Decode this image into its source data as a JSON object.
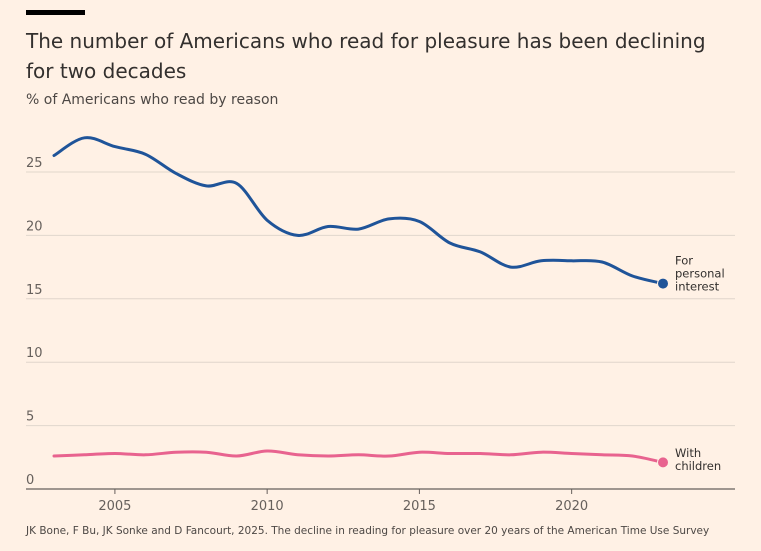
{
  "title": "The number of Americans who read for pleasure has been declining for two decades",
  "subtitle": "% of Americans who read by reason",
  "source": "JK Bone, F Bu, JK Sonke and D Fancourt, 2025. The decline in reading for pleasure over 20 years of the American Time Use Survey",
  "chart_data": {
    "type": "line",
    "title": "The number of Americans who read for pleasure has been declining for two decades",
    "ylabel": "% of Americans who read by reason",
    "xlabel": "",
    "xlim": [
      2003,
      2023
    ],
    "ylim": [
      0,
      27.5
    ],
    "x_ticks": [
      2005,
      2010,
      2015,
      2020
    ],
    "y_ticks": [
      0,
      5,
      10,
      15,
      20,
      25
    ],
    "grid": "horizontal",
    "x": [
      2003,
      2004,
      2005,
      2006,
      2007,
      2008,
      2009,
      2010,
      2011,
      2012,
      2013,
      2014,
      2015,
      2016,
      2017,
      2018,
      2019,
      2020,
      2021,
      2022,
      2023
    ],
    "series": [
      {
        "name": "For personal interest",
        "label_lines": [
          "For",
          "personal",
          "interest"
        ],
        "color": "#1F5499",
        "values": [
          26.3,
          27.7,
          27.0,
          26.4,
          24.9,
          23.9,
          24.1,
          21.2,
          20.0,
          20.7,
          20.5,
          21.3,
          21.1,
          19.4,
          18.7,
          17.5,
          18.0,
          18.0,
          17.9,
          16.8,
          16.2
        ]
      },
      {
        "name": "With children",
        "label_lines": [
          "With",
          "children"
        ],
        "color": "#E8638F",
        "values": [
          2.6,
          2.7,
          2.8,
          2.7,
          2.9,
          2.9,
          2.6,
          3.0,
          2.7,
          2.6,
          2.7,
          2.6,
          2.9,
          2.8,
          2.8,
          2.7,
          2.9,
          2.8,
          2.7,
          2.6,
          2.1
        ]
      }
    ]
  }
}
